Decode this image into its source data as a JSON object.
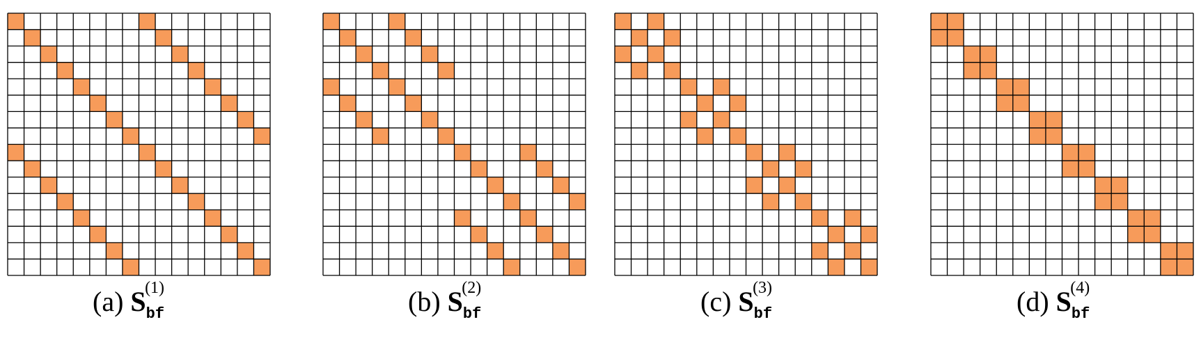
{
  "colors": {
    "fill": "#F79B5A",
    "line": "#000000",
    "background": "#FFFFFF"
  },
  "grid_size": 16,
  "panels": [
    {
      "id": "a",
      "caption": {
        "prefix": "(a)",
        "symbol": "S",
        "sub": "bf",
        "sup": "(1)"
      },
      "filled_cells": [
        [
          0,
          0
        ],
        [
          0,
          8
        ],
        [
          1,
          1
        ],
        [
          1,
          9
        ],
        [
          2,
          2
        ],
        [
          2,
          10
        ],
        [
          3,
          3
        ],
        [
          3,
          11
        ],
        [
          4,
          4
        ],
        [
          4,
          12
        ],
        [
          5,
          5
        ],
        [
          5,
          13
        ],
        [
          6,
          6
        ],
        [
          6,
          14
        ],
        [
          7,
          7
        ],
        [
          7,
          15
        ],
        [
          8,
          0
        ],
        [
          8,
          8
        ],
        [
          9,
          1
        ],
        [
          9,
          9
        ],
        [
          10,
          2
        ],
        [
          10,
          10
        ],
        [
          11,
          3
        ],
        [
          11,
          11
        ],
        [
          12,
          4
        ],
        [
          12,
          12
        ],
        [
          13,
          5
        ],
        [
          13,
          13
        ],
        [
          14,
          6
        ],
        [
          14,
          14
        ],
        [
          15,
          7
        ],
        [
          15,
          15
        ]
      ]
    },
    {
      "id": "b",
      "caption": {
        "prefix": "(b)",
        "symbol": "S",
        "sub": "bf",
        "sup": "(2)"
      },
      "filled_cells": [
        [
          0,
          0
        ],
        [
          0,
          4
        ],
        [
          1,
          1
        ],
        [
          1,
          5
        ],
        [
          2,
          2
        ],
        [
          2,
          6
        ],
        [
          3,
          3
        ],
        [
          3,
          7
        ],
        [
          4,
          0
        ],
        [
          4,
          4
        ],
        [
          5,
          1
        ],
        [
          5,
          5
        ],
        [
          6,
          2
        ],
        [
          6,
          6
        ],
        [
          7,
          3
        ],
        [
          7,
          7
        ],
        [
          8,
          8
        ],
        [
          8,
          12
        ],
        [
          9,
          9
        ],
        [
          9,
          13
        ],
        [
          10,
          10
        ],
        [
          10,
          14
        ],
        [
          11,
          11
        ],
        [
          11,
          15
        ],
        [
          12,
          8
        ],
        [
          12,
          12
        ],
        [
          13,
          9
        ],
        [
          13,
          13
        ],
        [
          14,
          10
        ],
        [
          14,
          14
        ],
        [
          15,
          11
        ],
        [
          15,
          15
        ]
      ]
    },
    {
      "id": "c",
      "caption": {
        "prefix": "(c)",
        "symbol": "S",
        "sub": "bf",
        "sup": "(3)"
      },
      "filled_cells": [
        [
          0,
          0
        ],
        [
          0,
          2
        ],
        [
          1,
          1
        ],
        [
          1,
          3
        ],
        [
          2,
          0
        ],
        [
          2,
          2
        ],
        [
          3,
          1
        ],
        [
          3,
          3
        ],
        [
          4,
          4
        ],
        [
          4,
          6
        ],
        [
          5,
          5
        ],
        [
          5,
          7
        ],
        [
          6,
          4
        ],
        [
          6,
          6
        ],
        [
          7,
          5
        ],
        [
          7,
          7
        ],
        [
          8,
          8
        ],
        [
          8,
          10
        ],
        [
          9,
          9
        ],
        [
          9,
          11
        ],
        [
          10,
          8
        ],
        [
          10,
          10
        ],
        [
          11,
          9
        ],
        [
          11,
          11
        ],
        [
          12,
          12
        ],
        [
          12,
          14
        ],
        [
          13,
          13
        ],
        [
          13,
          15
        ],
        [
          14,
          12
        ],
        [
          14,
          14
        ],
        [
          15,
          13
        ],
        [
          15,
          15
        ]
      ]
    },
    {
      "id": "d",
      "caption": {
        "prefix": "(d)",
        "symbol": "S",
        "sub": "bf",
        "sup": "(4)"
      },
      "filled_cells": [
        [
          0,
          0
        ],
        [
          0,
          1
        ],
        [
          1,
          0
        ],
        [
          1,
          1
        ],
        [
          2,
          2
        ],
        [
          2,
          3
        ],
        [
          3,
          2
        ],
        [
          3,
          3
        ],
        [
          4,
          4
        ],
        [
          4,
          5
        ],
        [
          5,
          4
        ],
        [
          5,
          5
        ],
        [
          6,
          6
        ],
        [
          6,
          7
        ],
        [
          7,
          6
        ],
        [
          7,
          7
        ],
        [
          8,
          8
        ],
        [
          8,
          9
        ],
        [
          9,
          8
        ],
        [
          9,
          9
        ],
        [
          10,
          10
        ],
        [
          10,
          11
        ],
        [
          11,
          10
        ],
        [
          11,
          11
        ],
        [
          12,
          12
        ],
        [
          12,
          13
        ],
        [
          13,
          12
        ],
        [
          13,
          13
        ],
        [
          14,
          14
        ],
        [
          14,
          15
        ],
        [
          15,
          14
        ],
        [
          15,
          15
        ]
      ]
    }
  ]
}
